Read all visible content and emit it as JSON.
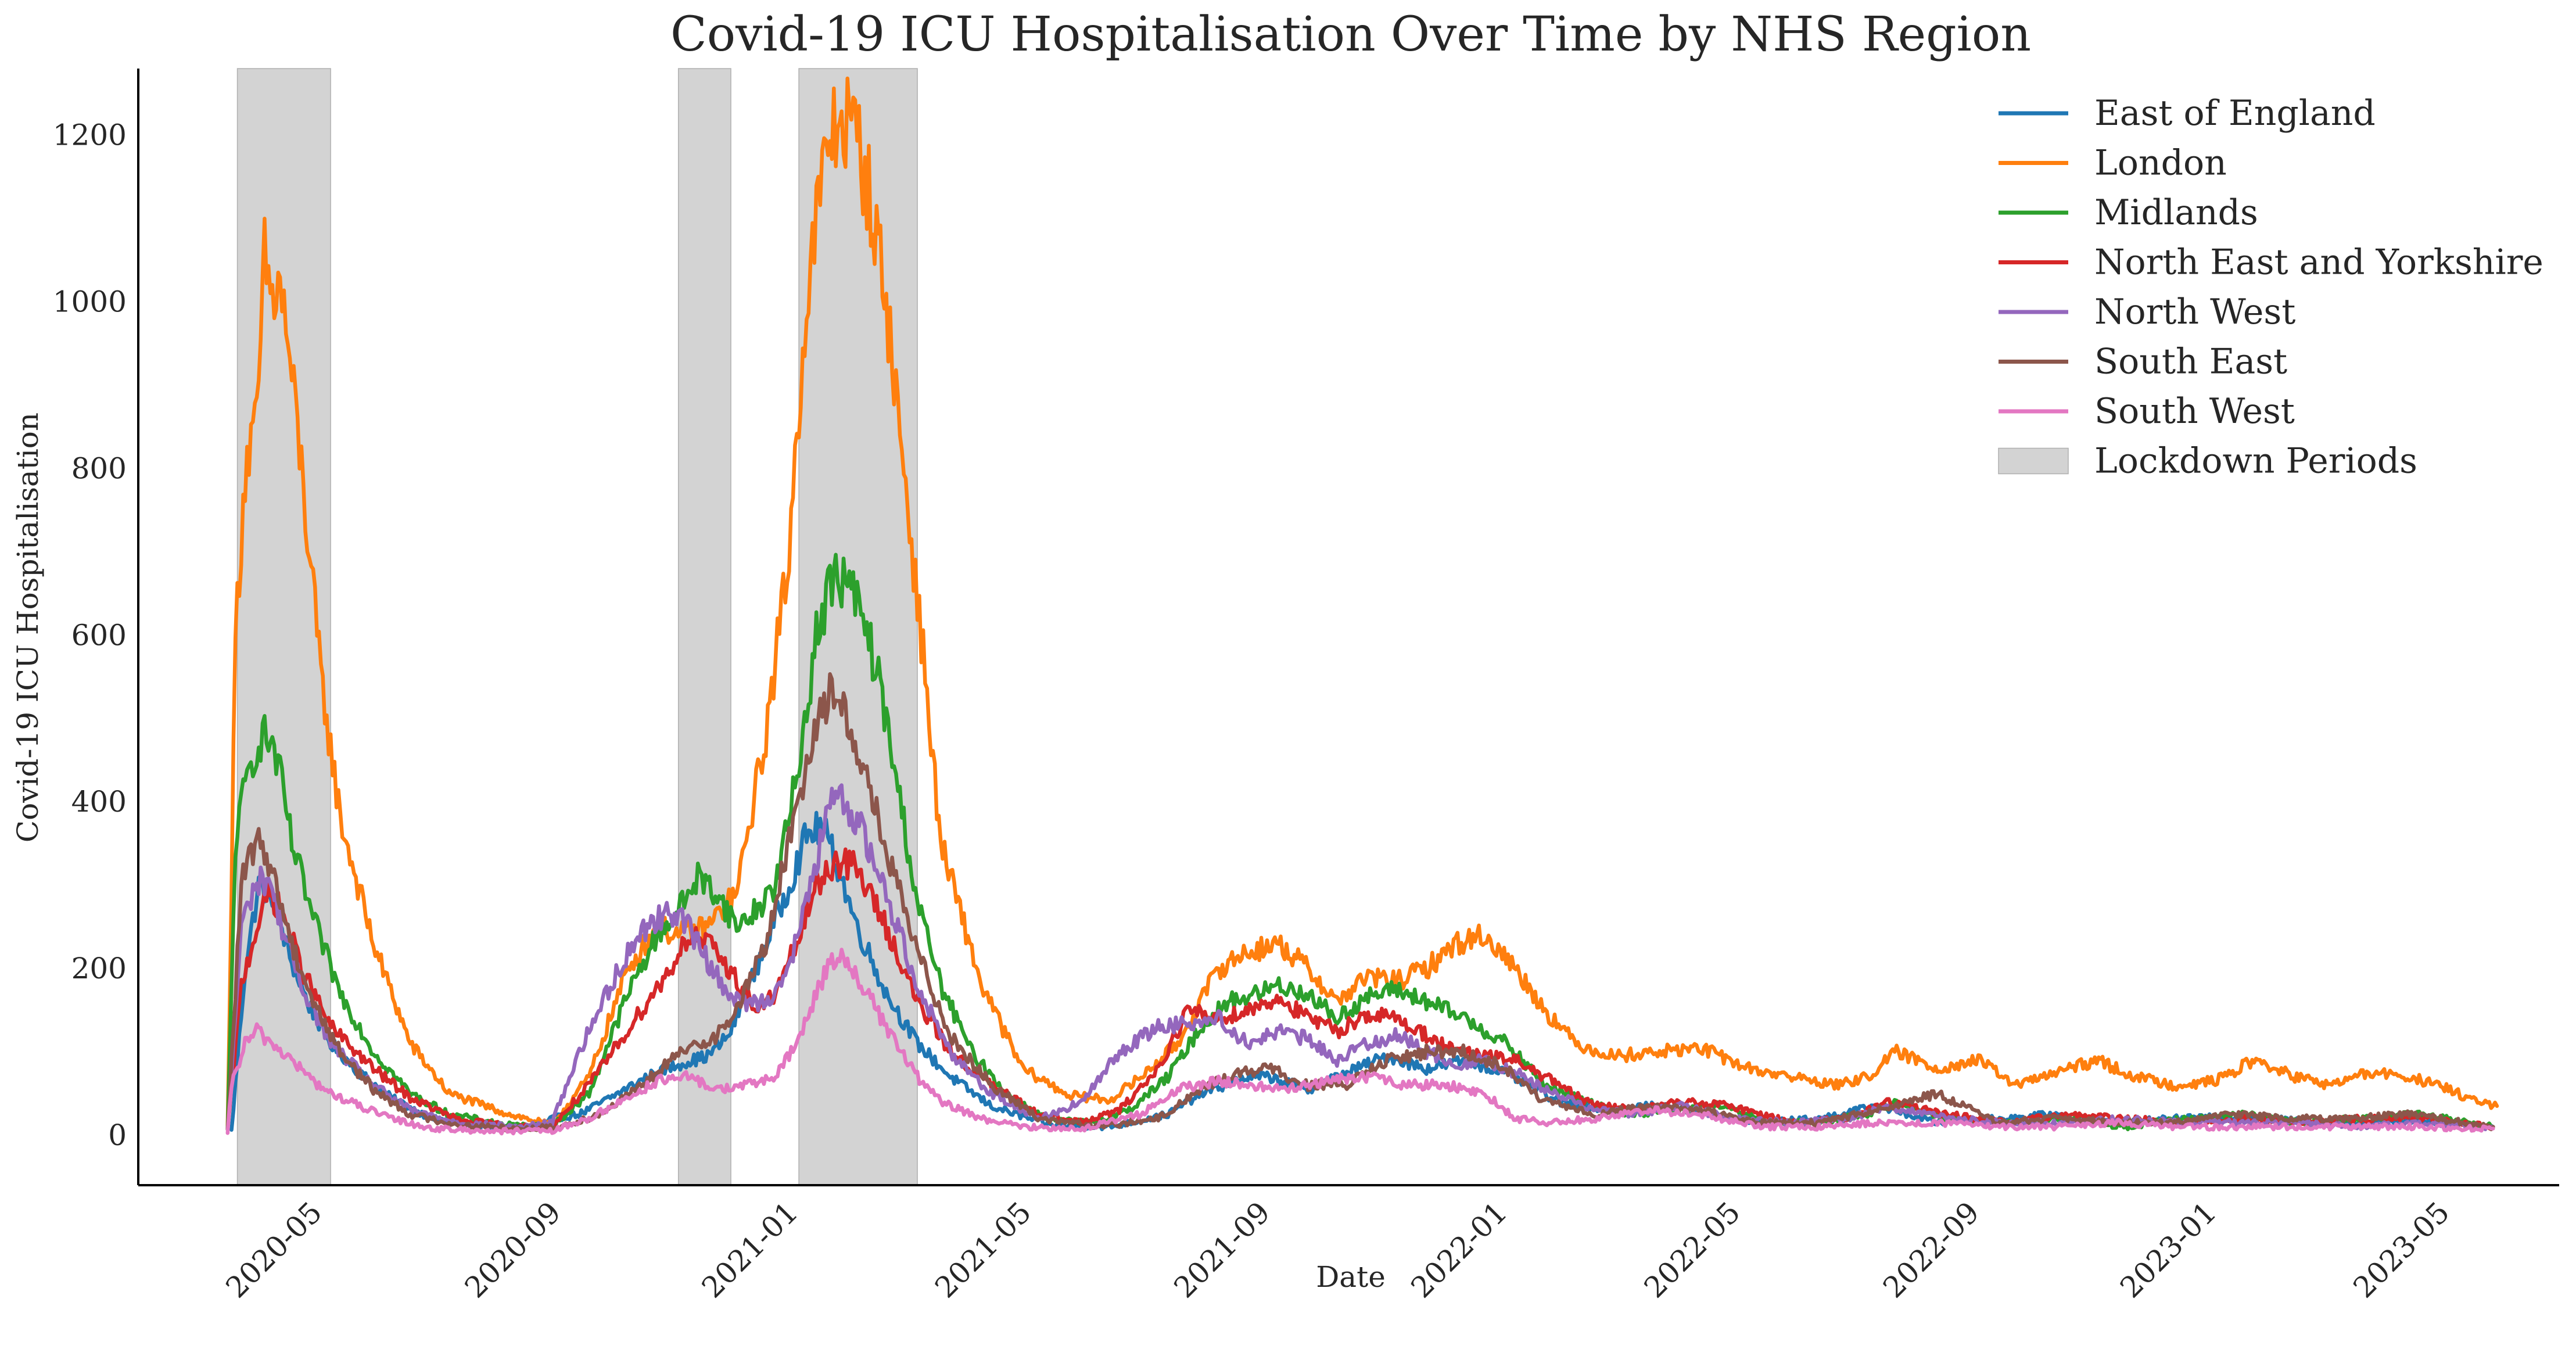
{
  "chart_data": {
    "type": "line",
    "title": "Covid-19 ICU Hospitalisation Over Time by NHS Region",
    "xlabel": "Date",
    "ylabel": "Covid-19 ICU Hospitalisation",
    "x_type": "date",
    "xlim": [
      "2020-02-01",
      "2023-07-01"
    ],
    "ylim": [
      -60,
      1280
    ],
    "grid": false,
    "legend_position": "top-right",
    "x_ticks": [
      "2020-05",
      "2020-09",
      "2021-01",
      "2021-05",
      "2021-09",
      "2022-01",
      "2022-05",
      "2022-09",
      "2023-01",
      "2023-05"
    ],
    "y_ticks": [
      0,
      200,
      400,
      600,
      800,
      1000,
      1200
    ],
    "shaded_regions": {
      "name": "Lockdown Periods",
      "color": "#d3d3d3",
      "periods": [
        [
          "2020-03-23",
          "2020-05-10"
        ],
        [
          "2020-11-05",
          "2020-12-02"
        ],
        [
          "2021-01-06",
          "2021-03-08"
        ]
      ]
    },
    "series": [
      {
        "name": "East of England",
        "color": "#1f77b4",
        "x": [
          "2020-03-20",
          "2020-03-27",
          "2020-04-03",
          "2020-04-10",
          "2020-04-18",
          "2020-04-28",
          "2020-05-10",
          "2020-05-25",
          "2020-06-10",
          "2020-07-01",
          "2020-08-01",
          "2020-08-25",
          "2020-09-01",
          "2020-09-15",
          "2020-10-01",
          "2020-10-20",
          "2020-11-05",
          "2020-11-20",
          "2020-12-01",
          "2020-12-15",
          "2021-01-01",
          "2021-01-10",
          "2021-01-18",
          "2021-01-25",
          "2021-02-05",
          "2021-02-20",
          "2021-03-08",
          "2021-03-25",
          "2021-04-15",
          "2021-05-15",
          "2021-06-15",
          "2021-07-15",
          "2021-08-01",
          "2021-08-25",
          "2021-09-05",
          "2021-09-25",
          "2021-10-15",
          "2021-11-05",
          "2021-11-25",
          "2021-12-15",
          "2022-01-05",
          "2022-02-01",
          "2022-03-01",
          "2022-03-20",
          "2022-04-15",
          "2022-05-15",
          "2022-06-15",
          "2022-07-15",
          "2022-08-15",
          "2022-09-15",
          "2022-10-15",
          "2022-11-15",
          "2022-12-15",
          "2023-01-15",
          "2023-02-15",
          "2023-03-15",
          "2023-04-15",
          "2023-05-15",
          "2023-05-28"
        ],
        "values": [
          5,
          200,
          300,
          290,
          220,
          160,
          110,
          75,
          45,
          20,
          10,
          8,
          20,
          25,
          45,
          70,
          85,
          95,
          120,
          200,
          300,
          360,
          370,
          330,
          250,
          170,
          110,
          70,
          35,
          12,
          10,
          25,
          50,
          70,
          70,
          55,
          75,
          95,
          80,
          90,
          75,
          40,
          30,
          35,
          28,
          15,
          20,
          35,
          15,
          20,
          25,
          15,
          20,
          22,
          18,
          15,
          18,
          12,
          10
        ]
      },
      {
        "name": "London",
        "color": "#ff7f0e",
        "x": [
          "2020-03-18",
          "2020-03-22",
          "2020-03-27",
          "2020-04-02",
          "2020-04-06",
          "2020-04-10",
          "2020-04-14",
          "2020-04-18",
          "2020-04-25",
          "2020-05-05",
          "2020-05-15",
          "2020-06-01",
          "2020-06-20",
          "2020-07-10",
          "2020-08-10",
          "2020-09-01",
          "2020-09-20",
          "2020-10-10",
          "2020-10-25",
          "2020-11-05",
          "2020-11-20",
          "2020-12-05",
          "2020-12-20",
          "2021-01-01",
          "2021-01-08",
          "2021-01-15",
          "2021-01-22",
          "2021-01-28",
          "2021-02-05",
          "2021-02-12",
          "2021-02-20",
          "2021-03-01",
          "2021-03-10",
          "2021-03-20",
          "2021-04-10",
          "2021-05-01",
          "2021-05-25",
          "2021-06-15",
          "2021-07-01",
          "2021-07-20",
          "2021-08-10",
          "2021-08-25",
          "2021-09-10",
          "2021-09-25",
          "2021-10-10",
          "2021-10-25",
          "2021-11-10",
          "2021-11-25",
          "2021-12-10",
          "2021-12-25",
          "2022-01-10",
          "2022-01-25",
          "2022-02-10",
          "2022-03-01",
          "2022-03-25",
          "2022-04-15",
          "2022-05-10",
          "2022-06-01",
          "2022-06-25",
          "2022-07-10",
          "2022-07-25",
          "2022-08-15",
          "2022-09-05",
          "2022-09-25",
          "2022-10-15",
          "2022-11-05",
          "2022-11-25",
          "2022-12-15",
          "2023-01-05",
          "2023-01-25",
          "2023-02-15",
          "2023-03-05",
          "2023-03-25",
          "2023-04-15",
          "2023-05-05",
          "2023-05-20",
          "2023-05-30"
        ],
        "values": [
          10,
          600,
          800,
          850,
          1050,
          1000,
          1020,
          950,
          800,
          550,
          380,
          230,
          110,
          50,
          25,
          12,
          70,
          200,
          250,
          240,
          250,
          290,
          480,
          700,
          950,
          1100,
          1200,
          1220,
          1200,
          1120,
          1000,
          800,
          600,
          350,
          180,
          80,
          48,
          42,
          70,
          110,
          200,
          220,
          230,
          200,
          160,
          190,
          185,
          200,
          230,
          240,
          200,
          150,
          110,
          95,
          100,
          105,
          80,
          70,
          60,
          70,
          100,
          80,
          90,
          60,
          75,
          90,
          70,
          60,
          65,
          90,
          70,
          60,
          75,
          70,
          55,
          40,
          35
        ]
      },
      {
        "name": "Midlands",
        "color": "#2ca02c",
        "x": [
          "2020-03-18",
          "2020-03-22",
          "2020-03-27",
          "2020-04-01",
          "2020-04-05",
          "2020-04-10",
          "2020-04-15",
          "2020-04-20",
          "2020-05-01",
          "2020-05-15",
          "2020-06-01",
          "2020-06-20",
          "2020-07-10",
          "2020-08-10",
          "2020-09-01",
          "2020-09-20",
          "2020-10-10",
          "2020-10-25",
          "2020-11-05",
          "2020-11-15",
          "2020-11-25",
          "2020-12-05",
          "2020-12-15",
          "2020-12-25",
          "2021-01-05",
          "2021-01-15",
          "2021-01-22",
          "2021-01-28",
          "2021-02-05",
          "2021-02-15",
          "2021-02-25",
          "2021-03-08",
          "2021-03-20",
          "2021-04-05",
          "2021-04-25",
          "2021-05-15",
          "2021-06-05",
          "2021-06-25",
          "2021-07-15",
          "2021-08-01",
          "2021-08-15",
          "2021-08-30",
          "2021-09-10",
          "2021-09-25",
          "2021-10-10",
          "2021-10-25",
          "2021-11-10",
          "2021-11-25",
          "2021-12-15",
          "2022-01-05",
          "2022-01-25",
          "2022-02-15",
          "2022-03-10",
          "2022-04-01",
          "2022-04-25",
          "2022-05-20",
          "2022-06-15",
          "2022-07-10",
          "2022-07-25",
          "2022-08-20",
          "2022-09-20",
          "2022-10-20",
          "2022-11-20",
          "2022-12-20",
          "2023-01-20",
          "2023-02-20",
          "2023-03-20",
          "2023-04-20",
          "2023-05-28"
        ],
        "values": [
          5,
          350,
          420,
          460,
          480,
          470,
          420,
          350,
          260,
          170,
          100,
          50,
          25,
          12,
          10,
          50,
          170,
          240,
          270,
          310,
          290,
          250,
          270,
          300,
          430,
          600,
          660,
          670,
          640,
          560,
          430,
          280,
          180,
          100,
          45,
          18,
          15,
          30,
          70,
          130,
          160,
          170,
          180,
          170,
          140,
          165,
          175,
          160,
          140,
          110,
          60,
          40,
          25,
          30,
          35,
          15,
          15,
          25,
          40,
          20,
          15,
          20,
          10,
          20,
          25,
          15,
          20,
          25,
          10
        ]
      },
      {
        "name": "North East and Yorkshire",
        "color": "#d62728",
        "x": [
          "2020-03-18",
          "2020-03-25",
          "2020-04-02",
          "2020-04-08",
          "2020-04-15",
          "2020-04-25",
          "2020-05-10",
          "2020-06-01",
          "2020-06-20",
          "2020-07-15",
          "2020-08-15",
          "2020-09-01",
          "2020-09-20",
          "2020-10-05",
          "2020-10-20",
          "2020-11-01",
          "2020-11-10",
          "2020-11-20",
          "2020-12-01",
          "2020-12-15",
          "2020-12-25",
          "2021-01-05",
          "2021-01-15",
          "2021-01-25",
          "2021-02-05",
          "2021-02-20",
          "2021-03-08",
          "2021-03-25",
          "2021-04-15",
          "2021-05-10",
          "2021-06-01",
          "2021-06-20",
          "2021-07-10",
          "2021-07-25",
          "2021-08-10",
          "2021-08-25",
          "2021-09-10",
          "2021-09-25",
          "2021-10-10",
          "2021-10-25",
          "2021-11-10",
          "2021-11-25",
          "2021-12-10",
          "2021-12-25",
          "2022-01-10",
          "2022-01-25",
          "2022-02-15",
          "2022-03-10",
          "2022-04-05",
          "2022-05-01",
          "2022-06-01",
          "2022-07-01",
          "2022-07-20",
          "2022-08-20",
          "2022-09-20",
          "2022-10-20",
          "2022-11-20",
          "2022-12-20",
          "2023-01-20",
          "2023-02-20",
          "2023-03-20",
          "2023-04-20",
          "2023-05-28"
        ],
        "values": [
          5,
          180,
          250,
          290,
          270,
          200,
          130,
          80,
          45,
          18,
          10,
          10,
          60,
          110,
          160,
          200,
          240,
          230,
          200,
          150,
          170,
          230,
          300,
          330,
          320,
          250,
          160,
          100,
          60,
          25,
          15,
          30,
          80,
          150,
          140,
          150,
          165,
          140,
          125,
          145,
          140,
          120,
          100,
          95,
          90,
          70,
          40,
          30,
          40,
          35,
          15,
          20,
          40,
          25,
          15,
          25,
          20,
          15,
          20,
          15,
          20,
          20,
          10
        ]
      },
      {
        "name": "North West",
        "color": "#9467bd",
        "x": [
          "2020-03-18",
          "2020-03-25",
          "2020-04-01",
          "2020-04-08",
          "2020-04-15",
          "2020-04-25",
          "2020-05-10",
          "2020-06-01",
          "2020-06-20",
          "2020-07-15",
          "2020-08-15",
          "2020-09-01",
          "2020-09-15",
          "2020-10-01",
          "2020-10-15",
          "2020-10-25",
          "2020-11-05",
          "2020-11-15",
          "2020-11-25",
          "2020-12-05",
          "2020-12-20",
          "2021-01-01",
          "2021-01-10",
          "2021-01-18",
          "2021-01-25",
          "2021-02-05",
          "2021-02-20",
          "2021-03-08",
          "2021-03-25",
          "2021-04-15",
          "2021-05-10",
          "2021-06-01",
          "2021-06-20",
          "2021-07-10",
          "2021-07-25",
          "2021-08-10",
          "2021-08-25",
          "2021-09-10",
          "2021-09-25",
          "2021-10-10",
          "2021-10-25",
          "2021-11-10",
          "2021-11-25",
          "2021-12-10",
          "2021-12-25",
          "2022-01-10",
          "2022-01-25",
          "2022-02-15",
          "2022-03-10",
          "2022-04-05",
          "2022-05-01",
          "2022-06-01",
          "2022-07-01",
          "2022-07-20",
          "2022-08-20",
          "2022-09-20",
          "2022-10-20",
          "2022-11-20",
          "2022-12-20",
          "2023-01-20",
          "2023-02-20",
          "2023-03-20",
          "2023-04-20",
          "2023-05-28"
        ],
        "values": [
          5,
          250,
          300,
          310,
          250,
          180,
          110,
          60,
          30,
          15,
          10,
          15,
          100,
          180,
          240,
          260,
          270,
          230,
          190,
          160,
          160,
          200,
          280,
          360,
          410,
          380,
          290,
          180,
          100,
          50,
          20,
          40,
          100,
          130,
          135,
          140,
          110,
          125,
          115,
          90,
          110,
          120,
          100,
          85,
          90,
          75,
          55,
          35,
          25,
          35,
          20,
          15,
          20,
          35,
          20,
          15,
          15,
          20,
          15,
          15,
          15,
          10,
          15,
          10
        ]
      },
      {
        "name": "South East",
        "color": "#8c564b",
        "x": [
          "2020-03-18",
          "2020-03-25",
          "2020-04-01",
          "2020-04-06",
          "2020-04-12",
          "2020-04-20",
          "2020-05-01",
          "2020-05-15",
          "2020-06-01",
          "2020-06-20",
          "2020-07-15",
          "2020-08-15",
          "2020-09-05",
          "2020-09-25",
          "2020-10-15",
          "2020-11-01",
          "2020-11-15",
          "2020-11-25",
          "2020-12-05",
          "2020-12-20",
          "2021-01-01",
          "2021-01-10",
          "2021-01-18",
          "2021-01-25",
          "2021-02-05",
          "2021-02-20",
          "2021-03-08",
          "2021-03-25",
          "2021-04-15",
          "2021-05-10",
          "2021-06-10",
          "2021-07-10",
          "2021-08-01",
          "2021-08-20",
          "2021-09-05",
          "2021-09-25",
          "2021-10-15",
          "2021-11-05",
          "2021-11-25",
          "2021-12-15",
          "2022-01-05",
          "2022-01-25",
          "2022-02-20",
          "2022-03-20",
          "2022-04-15",
          "2022-05-15",
          "2022-06-15",
          "2022-07-15",
          "2022-08-15",
          "2022-09-15",
          "2022-10-15",
          "2022-11-15",
          "2022-12-15",
          "2023-01-15",
          "2023-02-15",
          "2023-03-15",
          "2023-04-15",
          "2023-05-28"
        ],
        "values": [
          5,
          300,
          350,
          345,
          300,
          230,
          160,
          100,
          55,
          25,
          12,
          8,
          10,
          25,
          55,
          90,
          110,
          120,
          150,
          230,
          350,
          450,
          520,
          530,
          470,
          340,
          220,
          120,
          60,
          20,
          10,
          20,
          55,
          75,
          80,
          60,
          60,
          90,
          100,
          100,
          80,
          40,
          25,
          35,
          30,
          15,
          15,
          30,
          50,
          15,
          20,
          15,
          15,
          25,
          20,
          20,
          25,
          10
        ]
      },
      {
        "name": "South West",
        "color": "#e377c2",
        "x": [
          "2020-03-18",
          "2020-03-20",
          "2020-03-27",
          "2020-04-02",
          "2020-04-10",
          "2020-04-20",
          "2020-05-01",
          "2020-05-10",
          "2020-05-25",
          "2020-06-10",
          "2020-07-01",
          "2020-08-01",
          "2020-09-01",
          "2020-09-20",
          "2020-10-10",
          "2020-10-25",
          "2020-11-10",
          "2020-11-25",
          "2020-12-10",
          "2020-12-25",
          "2021-01-05",
          "2021-01-15",
          "2021-01-22",
          "2021-01-28",
          "2021-02-05",
          "2021-02-15",
          "2021-02-25",
          "2021-03-08",
          "2021-03-20",
          "2021-04-10",
          "2021-05-01",
          "2021-06-01",
          "2021-07-01",
          "2021-07-20",
          "2021-08-10",
          "2021-08-25",
          "2021-09-15",
          "2021-10-05",
          "2021-10-25",
          "2021-11-15",
          "2021-12-05",
          "2021-12-25",
          "2022-01-10",
          "2022-01-25",
          "2022-02-20",
          "2022-03-20",
          "2022-04-15",
          "2022-05-15",
          "2022-06-15",
          "2022-07-15",
          "2022-08-15",
          "2022-09-15",
          "2022-10-15",
          "2022-11-15",
          "2022-12-15",
          "2023-01-15",
          "2023-02-15",
          "2023-03-15",
          "2023-04-15",
          "2023-05-28"
        ],
        "values": [
          0,
          60,
          110,
          125,
          110,
          90,
          65,
          50,
          35,
          20,
          8,
          5,
          5,
          20,
          45,
          65,
          70,
          55,
          60,
          70,
          110,
          170,
          210,
          215,
          190,
          150,
          110,
          70,
          40,
          20,
          10,
          8,
          25,
          55,
          65,
          60,
          55,
          65,
          70,
          60,
          60,
          50,
          20,
          15,
          20,
          30,
          25,
          10,
          10,
          15,
          15,
          10,
          10,
          15,
          10,
          10,
          10,
          10,
          10,
          8
        ]
      }
    ]
  }
}
